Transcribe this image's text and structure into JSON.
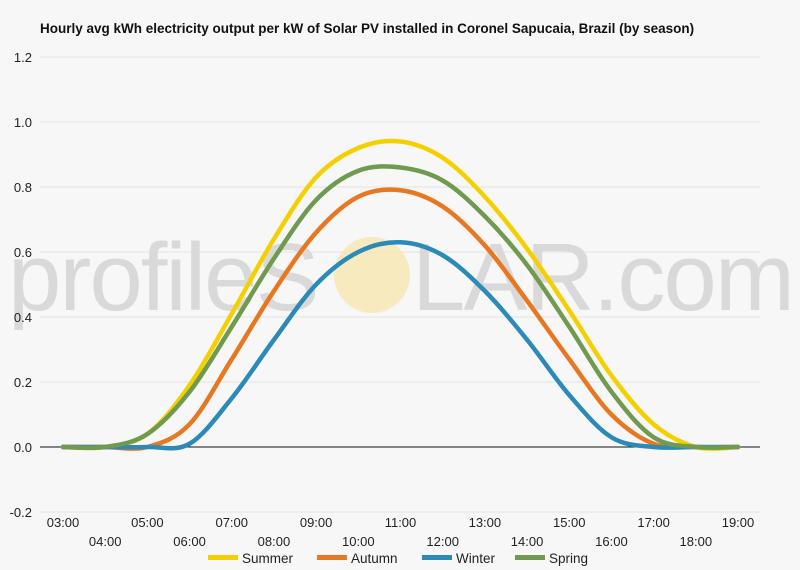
{
  "chart_data": {
    "type": "line",
    "title": "Hourly avg kWh electricity output per kW of Solar PV installed in Coronel Sapucaia, Brazil (by season)",
    "xlabel": "",
    "ylabel": "",
    "x": [
      "03:00",
      "04:00",
      "05:00",
      "06:00",
      "07:00",
      "08:00",
      "09:00",
      "10:00",
      "11:00",
      "12:00",
      "13:00",
      "14:00",
      "15:00",
      "16:00",
      "17:00",
      "18:00",
      "19:00"
    ],
    "ylim": [
      -0.2,
      1.2
    ],
    "y_ticks": [
      "1.2",
      "1.0",
      "0.8",
      "0.6",
      "0.4",
      "0.2",
      "0.0",
      "-0.2"
    ],
    "y_tick_values": [
      1.2,
      1.0,
      0.8,
      0.6,
      0.4,
      0.2,
      0.0,
      -0.2
    ],
    "grid": true,
    "legend_position": "bottom",
    "series": [
      {
        "name": "Summer",
        "color": "#f5d000",
        "values": [
          0.0,
          0.0,
          0.04,
          0.19,
          0.41,
          0.64,
          0.83,
          0.92,
          0.94,
          0.89,
          0.77,
          0.61,
          0.42,
          0.22,
          0.07,
          0.0,
          0.0
        ]
      },
      {
        "name": "Autumn",
        "color": "#e87722",
        "values": [
          0.0,
          0.0,
          0.0,
          0.07,
          0.27,
          0.48,
          0.66,
          0.77,
          0.79,
          0.74,
          0.62,
          0.45,
          0.27,
          0.1,
          0.01,
          0.0,
          0.0
        ]
      },
      {
        "name": "Winter",
        "color": "#2b8ab8",
        "values": [
          0.0,
          0.0,
          0.0,
          0.01,
          0.15,
          0.33,
          0.5,
          0.6,
          0.63,
          0.59,
          0.48,
          0.33,
          0.16,
          0.03,
          0.0,
          0.0,
          0.0
        ]
      },
      {
        "name": "Spring",
        "color": "#6f9a4f",
        "values": [
          0.0,
          0.0,
          0.04,
          0.17,
          0.37,
          0.58,
          0.76,
          0.85,
          0.86,
          0.82,
          0.71,
          0.56,
          0.37,
          0.17,
          0.03,
          0.0,
          0.0
        ]
      }
    ]
  },
  "watermark": {
    "text_left": "profileS",
    "text_right": "LAR.com"
  }
}
